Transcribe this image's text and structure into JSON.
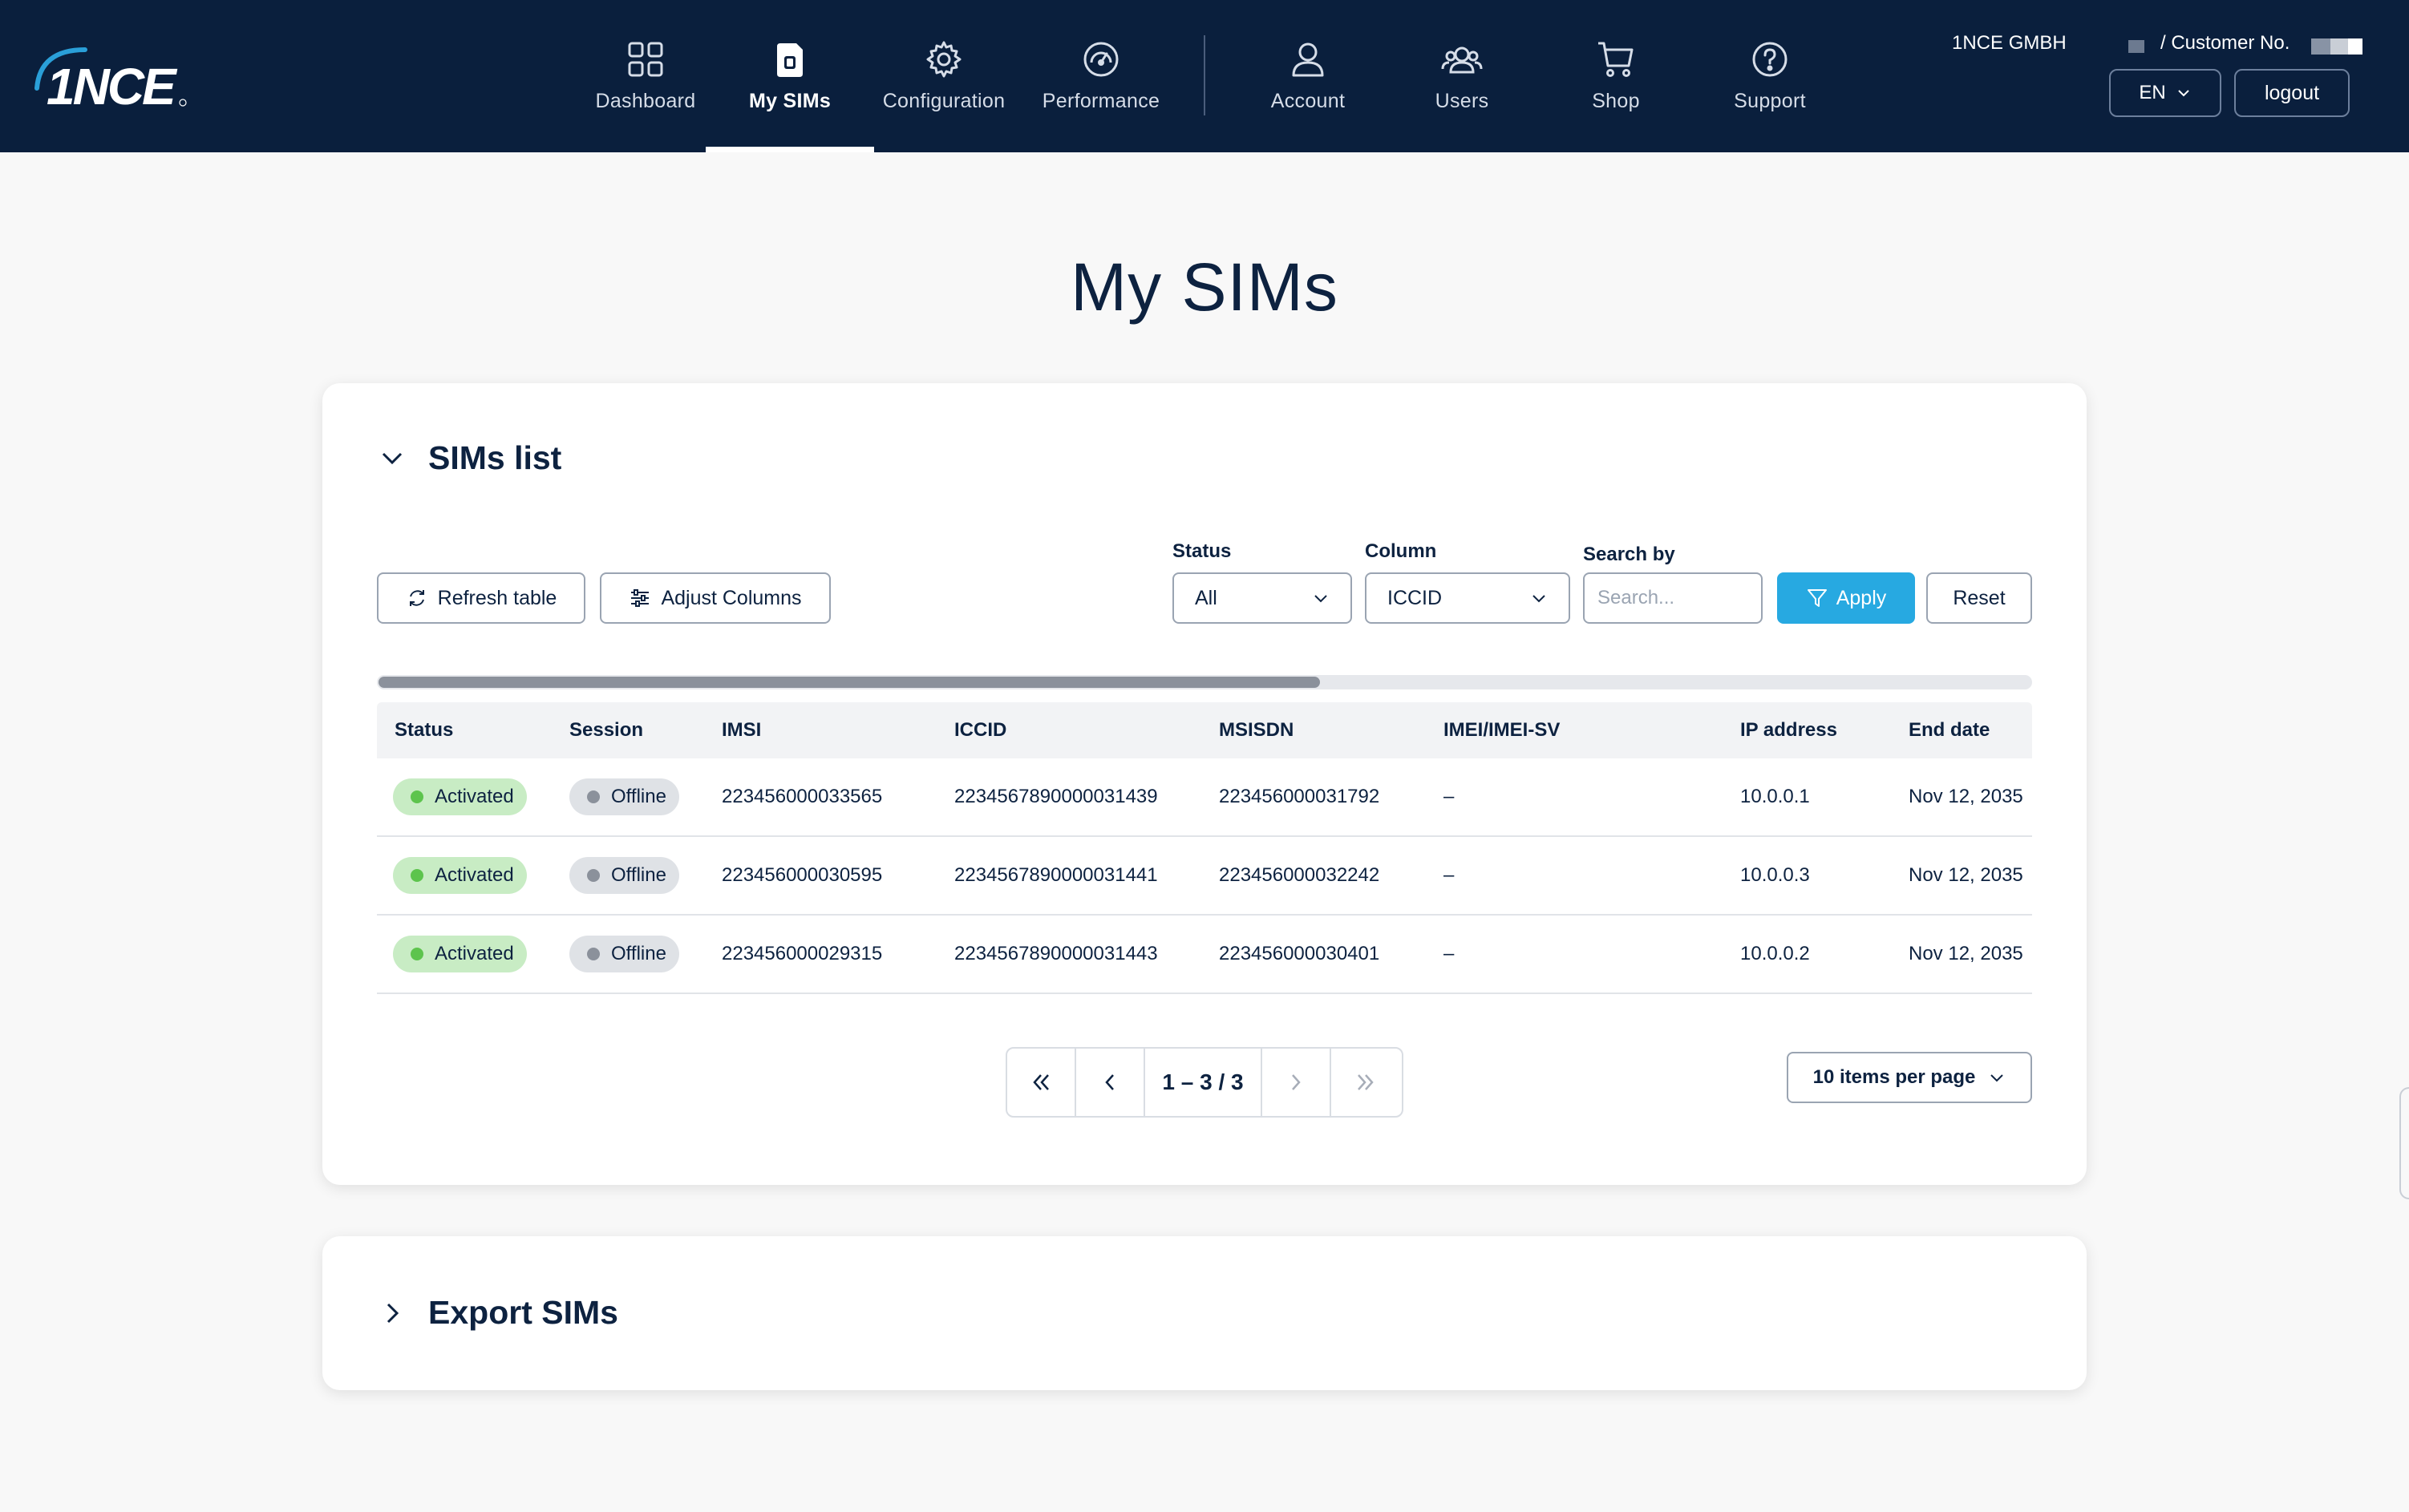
{
  "colors": {
    "nav_bg": "#0a1f3d",
    "accent": "#27a9e1",
    "status_active_bg": "#c8ecc4",
    "status_active_dot": "#5dc44d",
    "session_offline_bg": "#dfe2e6",
    "session_offline_dot": "#8b919b"
  },
  "brand": {
    "logo_text": "1NCE"
  },
  "nav": {
    "items": [
      {
        "label": "Dashboard",
        "icon": "grid-icon"
      },
      {
        "label": "My SIMs",
        "icon": "sim-card-icon",
        "active": true
      },
      {
        "label": "Configuration",
        "icon": "gear-icon"
      },
      {
        "label": "Performance",
        "icon": "gauge-icon"
      },
      {
        "label": "Account",
        "icon": "user-icon"
      },
      {
        "label": "Users",
        "icon": "users-icon"
      },
      {
        "label": "Shop",
        "icon": "cart-icon"
      },
      {
        "label": "Support",
        "icon": "help-icon"
      }
    ]
  },
  "user": {
    "company": "1NCE GMBH",
    "customer_label": "/ Customer No.",
    "language": "EN",
    "logout_label": "logout"
  },
  "page": {
    "title": "My SIMs"
  },
  "sims_list": {
    "title": "SIMs list",
    "refresh_label": "Refresh table",
    "adjust_label": "Adjust Columns",
    "status_filter": {
      "label": "Status",
      "value": "All"
    },
    "column_filter": {
      "label": "Column",
      "value": "ICCID"
    },
    "search": {
      "label": "Search by",
      "placeholder": "Search..."
    },
    "apply_label": "Apply",
    "reset_label": "Reset",
    "scroll_fraction": 0.57,
    "columns": [
      "Status",
      "Session",
      "IMSI",
      "ICCID",
      "MSISDN",
      "IMEI/IMEI-SV",
      "IP address",
      "End date"
    ],
    "rows": [
      {
        "status": "Activated",
        "session": "Offline",
        "imsi": "223456000033565",
        "iccid": "2234567890000031439",
        "msisdn": "223456000031792",
        "imei": "–",
        "ip": "10.0.0.1",
        "end_date": "Nov 12, 2035"
      },
      {
        "status": "Activated",
        "session": "Offline",
        "imsi": "223456000030595",
        "iccid": "2234567890000031441",
        "msisdn": "223456000032242",
        "imei": "–",
        "ip": "10.0.0.3",
        "end_date": "Nov 12, 2035"
      },
      {
        "status": "Activated",
        "session": "Offline",
        "imsi": "223456000029315",
        "iccid": "2234567890000031443",
        "msisdn": "223456000030401",
        "imei": "–",
        "ip": "10.0.0.2",
        "end_date": "Nov 12, 2035"
      }
    ],
    "pagination": {
      "range": "1 – 3 / 3",
      "per_page": "10 items per page"
    }
  },
  "export": {
    "title": "Export SIMs"
  }
}
